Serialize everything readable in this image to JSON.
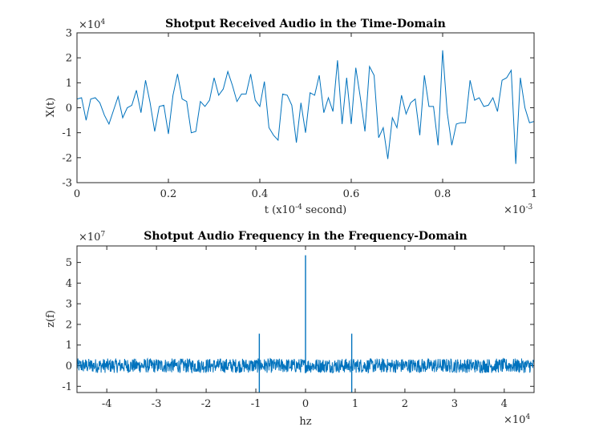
{
  "chart_data": [
    {
      "type": "line",
      "title": "Shotput Received Audio in the Time-Domain",
      "xlabel": "t (x10-4 second)",
      "ylabel": "X(t)",
      "x_exponent_label": "×10-3",
      "y_exponent_label": "×104",
      "xlim": [
        0,
        1
      ],
      "ylim": [
        -3,
        3
      ],
      "xticks": [
        "0",
        "0.2",
        "0.4",
        "0.6",
        "0.8",
        "1"
      ],
      "xtick_values": [
        0,
        0.2,
        0.4,
        0.6,
        0.8,
        1
      ],
      "yticks": [
        "-3",
        "-2",
        "-1",
        "0",
        "1",
        "2",
        "3"
      ],
      "ytick_values": [
        -3,
        -2,
        -1,
        0,
        1,
        2,
        3
      ],
      "grid": false,
      "color": "#0072BD",
      "series": [
        {
          "x": [
            0,
            0.01,
            0.02,
            0.03,
            0.04,
            0.05,
            0.06,
            0.07,
            0.08,
            0.09,
            0.1,
            0.11,
            0.12,
            0.13,
            0.14,
            0.15,
            0.16,
            0.17,
            0.18,
            0.19,
            0.2,
            0.21,
            0.22,
            0.23,
            0.24,
            0.25,
            0.26,
            0.27,
            0.28,
            0.29,
            0.3,
            0.31,
            0.32,
            0.33,
            0.34,
            0.35,
            0.36,
            0.37,
            0.38,
            0.39,
            0.4,
            0.41,
            0.42,
            0.43,
            0.44,
            0.45,
            0.46,
            0.47,
            0.48,
            0.49,
            0.5,
            0.51,
            0.52,
            0.53,
            0.54,
            0.55,
            0.56,
            0.57,
            0.58,
            0.59,
            0.6,
            0.61,
            0.62,
            0.63,
            0.64,
            0.65,
            0.66,
            0.67,
            0.68,
            0.69,
            0.7,
            0.71,
            0.72,
            0.73,
            0.74,
            0.75,
            0.76,
            0.77,
            0.78,
            0.79,
            0.8,
            0.81,
            0.82,
            0.83,
            0.84,
            0.85,
            0.86,
            0.87,
            0.88,
            0.89,
            0.9,
            0.91,
            0.92,
            0.93,
            0.94,
            0.95,
            0.96,
            0.97,
            0.98,
            0.99,
            1.0
          ],
          "y": [
            0.35,
            0.4,
            -0.5,
            0.35,
            0.4,
            0.2,
            -0.3,
            -0.65,
            -0.1,
            0.45,
            -0.4,
            0.0,
            0.1,
            0.7,
            -0.2,
            1.1,
            0.2,
            -0.95,
            0.05,
            0.1,
            -1.05,
            0.5,
            1.35,
            0.35,
            0.25,
            -1.0,
            -0.95,
            0.25,
            0.05,
            0.3,
            1.2,
            0.5,
            0.75,
            1.45,
            0.9,
            0.25,
            0.55,
            0.55,
            1.35,
            0.3,
            0.05,
            1.05,
            -0.8,
            -1.1,
            -1.3,
            0.55,
            0.5,
            0.1,
            -1.4,
            0.2,
            -1.0,
            0.6,
            0.5,
            1.3,
            -0.2,
            0.4,
            -0.15,
            1.9,
            -0.65,
            1.2,
            -0.65,
            1.6,
            0.4,
            -0.95,
            1.65,
            1.3,
            -1.2,
            -0.8,
            -2.05,
            -0.4,
            -0.8,
            0.5,
            -0.25,
            0.2,
            0.35,
            -1.1,
            1.3,
            0.05,
            0.05,
            -1.5,
            2.3,
            -0.2,
            -1.5,
            -0.65,
            -0.6,
            -0.6,
            1.1,
            0.3,
            0.4,
            0.05,
            0.1,
            0.4,
            -0.15,
            1.1,
            1.2,
            1.5,
            -2.25,
            1.2,
            0.0,
            -0.6,
            -0.55
          ]
        }
      ]
    },
    {
      "type": "line",
      "title": "Shotput Audio Frequency in the Frequency-Domain",
      "xlabel": "hz",
      "ylabel": "z(f)",
      "x_exponent_label": "×104",
      "y_exponent_label": "×107",
      "xlim": [
        -4.6,
        4.6
      ],
      "ylim": [
        -1.3,
        5.8
      ],
      "xticks": [
        "-4",
        "-3",
        "-2",
        "-1",
        "0",
        "1",
        "2",
        "3",
        "4"
      ],
      "xtick_values": [
        -4,
        -3,
        -2,
        -1,
        0,
        1,
        2,
        3,
        4
      ],
      "yticks": [
        "-1",
        "0",
        "1",
        "2",
        "3",
        "4",
        "5"
      ],
      "ytick_values": [
        -1,
        0,
        1,
        2,
        3,
        4,
        5
      ],
      "grid": false,
      "color": "#0072BD",
      "noise_band": [
        -0.35,
        0.35
      ],
      "spikes": [
        {
          "x": -0.93,
          "top": 1.55,
          "bottom": -1.3
        },
        {
          "x": 0.0,
          "top": 5.35,
          "bottom": 0.0
        },
        {
          "x": 0.93,
          "top": 1.55,
          "bottom": -1.3
        }
      ]
    }
  ]
}
